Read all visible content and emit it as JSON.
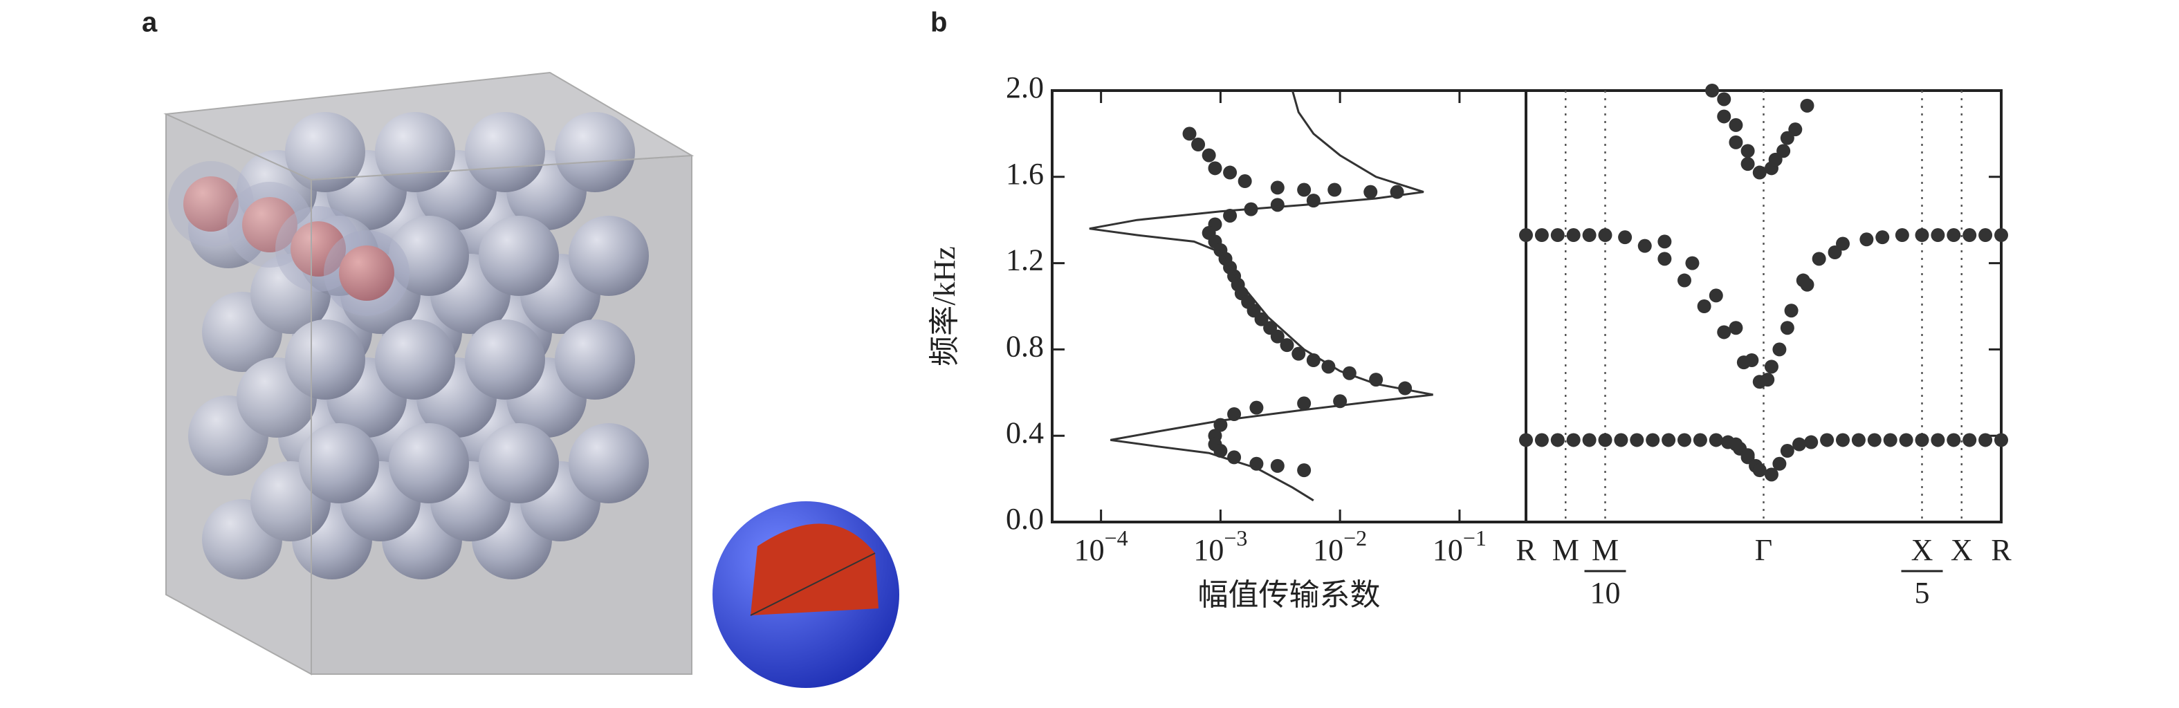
{
  "panel_labels": [
    "a",
    "b"
  ],
  "chart_data": [
    {
      "type": "scatter",
      "ylabel": "频率/kHz",
      "xlabel": "幅值传输系数",
      "log_x": true,
      "xlim": [
        3.9e-05,
        0.36
      ],
      "xticks": [
        {
          "value": 0.0001,
          "label": "10",
          "exponent": "−4"
        },
        {
          "value": 0.001,
          "label": "10",
          "exponent": "−3"
        },
        {
          "value": 0.01,
          "label": "10",
          "exponent": "−2"
        },
        {
          "value": 0.1,
          "label": "10",
          "exponent": "−1"
        }
      ],
      "ylim": [
        0,
        2
      ],
      "yticks": [
        {
          "value": 0,
          "label": "0.0"
        },
        0.4,
        0.8,
        1.2,
        1.6,
        {
          "value": 2,
          "label": "2.0"
        }
      ],
      "series": [
        {
          "kind": "points",
          "color": "#333333",
          "x": [
            0.00055,
            0.00065,
            0.0008,
            0.0009,
            0.0012,
            0.0016,
            0.003,
            0.005,
            0.009,
            0.018,
            0.03,
            0.006,
            0.003,
            0.0018,
            0.0012,
            0.0009,
            0.0008,
            0.0009,
            0.001,
            0.0011,
            0.0012,
            0.0013,
            0.0014,
            0.0015,
            0.0017,
            0.0019,
            0.0022,
            0.0026,
            0.003,
            0.0036,
            0.0045,
            0.006,
            0.008,
            0.012,
            0.02,
            0.035,
            0.01,
            0.005,
            0.002,
            0.0013,
            0.001,
            0.0009,
            0.0009,
            0.001,
            0.0013,
            0.002,
            0.003,
            0.005
          ],
          "values": [
            1.8,
            1.75,
            1.7,
            1.64,
            1.62,
            1.58,
            1.55,
            1.54,
            1.54,
            1.53,
            1.53,
            1.49,
            1.47,
            1.45,
            1.42,
            1.38,
            1.34,
            1.3,
            1.26,
            1.22,
            1.18,
            1.14,
            1.1,
            1.06,
            1.02,
            0.98,
            0.94,
            0.9,
            0.86,
            0.82,
            0.78,
            0.75,
            0.72,
            0.69,
            0.66,
            0.62,
            0.56,
            0.55,
            0.53,
            0.5,
            0.45,
            0.4,
            0.36,
            0.33,
            0.3,
            0.27,
            0.26,
            0.24
          ]
        },
        {
          "kind": "line",
          "color": "#333333",
          "x": [
            0.004,
            0.0045,
            0.006,
            0.01,
            0.02,
            0.05,
            0.02,
            0.005,
            0.001,
            0.0002,
            8e-05,
            0.0002,
            0.0006,
            0.001,
            0.0015,
            0.0025,
            0.005,
            0.01,
            0.02,
            0.06,
            0.02,
            0.005,
            0.001,
            0.0003,
            0.00012,
            0.0003,
            0.0008,
            0.002,
            0.004,
            0.006
          ],
          "values": [
            2.0,
            1.9,
            1.8,
            1.7,
            1.6,
            1.53,
            1.5,
            1.47,
            1.44,
            1.4,
            1.36,
            1.33,
            1.3,
            1.25,
            1.1,
            0.95,
            0.8,
            0.7,
            0.64,
            0.59,
            0.56,
            0.52,
            0.47,
            0.42,
            0.38,
            0.35,
            0.32,
            0.25,
            0.16,
            0.1
          ]
        }
      ]
    },
    {
      "type": "scatter",
      "xlim": [
        0,
        12
      ],
      "xticks": [
        {
          "value": 0,
          "label": "R"
        },
        {
          "value": 1,
          "label": "M"
        },
        {
          "value": 2,
          "label": "M",
          "denominator": "10"
        },
        {
          "value": 6,
          "label": "Γ"
        },
        {
          "value": 10,
          "label": "X",
          "denominator": "5"
        },
        {
          "value": 11,
          "label": "X"
        },
        {
          "value": 12,
          "label": "R"
        }
      ],
      "ylim": [
        0,
        2
      ],
      "series": [
        {
          "kind": "points",
          "color": "#333333",
          "x": [
            0,
            0.4,
            0.8,
            1.2,
            1.6,
            2,
            2.4,
            2.8,
            3.2,
            3.6,
            4,
            4.4,
            4.8,
            5.1,
            5.4,
            5.6,
            5.8,
            5.3,
            5.6,
            5.9,
            6.2,
            6.4,
            6.6,
            6.9,
            7.2,
            7.6,
            8,
            8.4,
            8.8,
            9.2,
            9.6,
            10,
            10.4,
            10.8,
            11.2,
            11.6,
            12
          ],
          "values": [
            0.38,
            0.38,
            0.38,
            0.38,
            0.38,
            0.38,
            0.38,
            0.38,
            0.38,
            0.38,
            0.38,
            0.38,
            0.38,
            0.37,
            0.34,
            0.3,
            0.26,
            0.36,
            0.31,
            0.24,
            0.22,
            0.27,
            0.33,
            0.36,
            0.37,
            0.38,
            0.38,
            0.38,
            0.38,
            0.38,
            0.38,
            0.38,
            0.38,
            0.38,
            0.38,
            0.38,
            0.38
          ]
        },
        {
          "kind": "points",
          "color": "#333333",
          "x": [
            0,
            0.4,
            0.8,
            1.2,
            1.6,
            2,
            2.5,
            3,
            3.5,
            4,
            4.5,
            5,
            5.5,
            5.9,
            3.5,
            4.2,
            4.8,
            5.3,
            5.7,
            6.1,
            6.4,
            6.7,
            7,
            7.4,
            8,
            9,
            6.2,
            6.6,
            7.1,
            7.8,
            8.6,
            9.5,
            10,
            10.4,
            10.8,
            11.2,
            11.6,
            12
          ],
          "values": [
            1.33,
            1.33,
            1.33,
            1.33,
            1.33,
            1.33,
            1.32,
            1.28,
            1.22,
            1.12,
            1.0,
            0.88,
            0.74,
            0.65,
            1.3,
            1.2,
            1.05,
            0.9,
            0.75,
            0.66,
            0.8,
            0.98,
            1.12,
            1.22,
            1.29,
            1.32,
            0.72,
            0.9,
            1.1,
            1.25,
            1.31,
            1.33,
            1.33,
            1.33,
            1.33,
            1.33,
            1.33,
            1.33
          ]
        },
        {
          "kind": "points",
          "color": "#333333",
          "x": [
            4.7,
            5.0,
            5.3,
            5.6,
            5.9,
            6.2,
            6.5,
            6.8,
            7.1,
            5.0,
            5.3,
            5.6,
            6.3,
            6.6
          ],
          "values": [
            2.0,
            1.88,
            1.76,
            1.66,
            1.62,
            1.64,
            1.72,
            1.82,
            1.93,
            1.96,
            1.84,
            1.72,
            1.68,
            1.78
          ]
        }
      ]
    }
  ]
}
